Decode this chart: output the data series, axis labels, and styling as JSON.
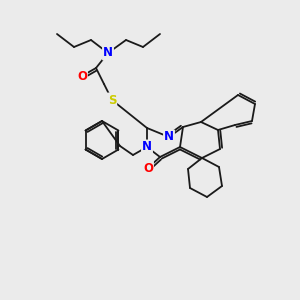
{
  "bg_color": "#ebebeb",
  "bond_color": "#1a1a1a",
  "atom_colors": {
    "N": "#0000ff",
    "O": "#ff0000",
    "S": "#cccc00",
    "C": "#1a1a1a"
  },
  "figsize": [
    3.0,
    3.0
  ],
  "dpi": 100
}
